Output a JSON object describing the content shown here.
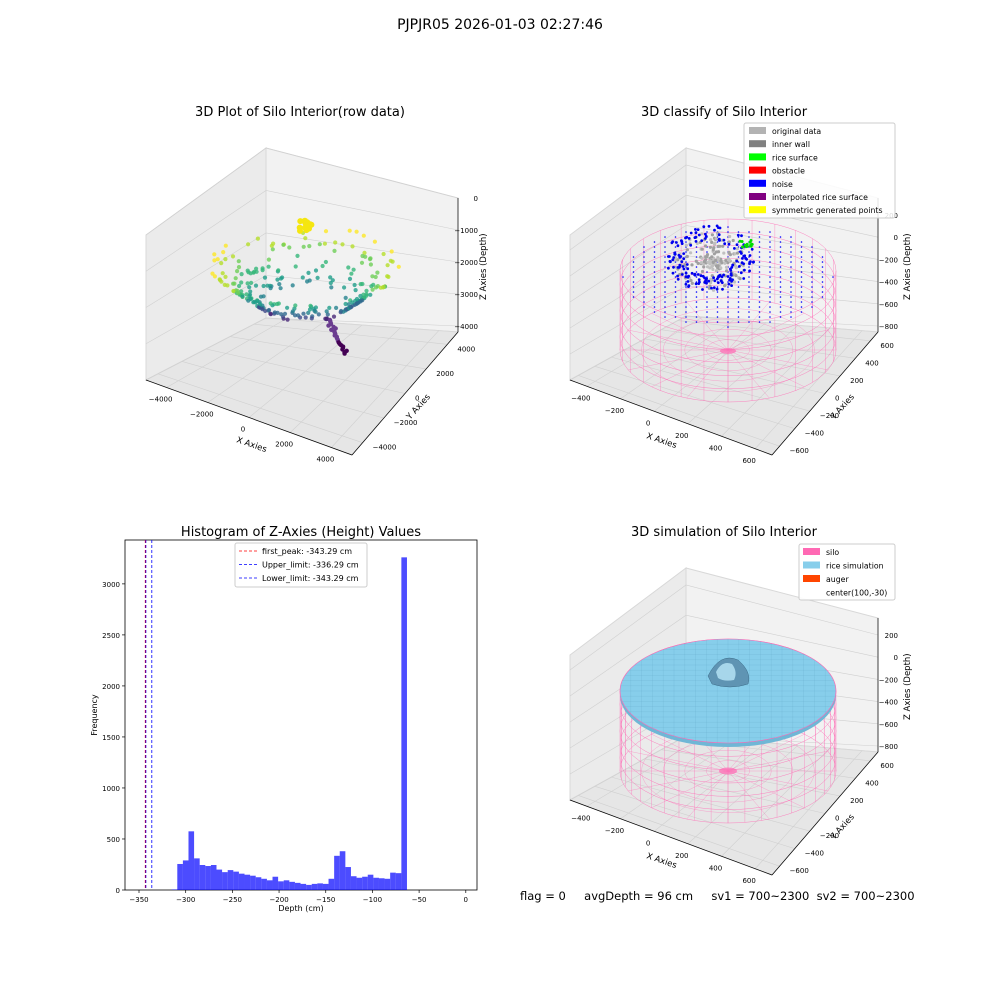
{
  "figure": {
    "suptitle": "PJPJR05 2026-01-03 02:27:46",
    "status": {
      "flag": "flag = 0",
      "avg_depth": "avgDepth = 96 cm",
      "sv1": "sv1 = 700~2300",
      "sv2": "sv2 = 700~2300"
    }
  },
  "chart_data": [
    {
      "type": "scatter",
      "projection": "3d",
      "title": "3D Plot of Silo Interior(row data)",
      "xlabel": "X Axies",
      "ylabel": "Y Axies",
      "zlabel": "Z Axies (Depth)",
      "xticks": [
        -4000,
        -2000,
        0,
        2000,
        4000
      ],
      "yticks": [
        -4000,
        -2000,
        0,
        2000,
        4000
      ],
      "zticks": [
        -4000,
        -3000,
        -2000,
        -1000,
        0
      ],
      "xlim": [
        -5000,
        5000
      ],
      "ylim": [
        -5000,
        5000
      ],
      "zlim": [
        -4600,
        200
      ],
      "colormap": "viridis",
      "grid": true
    },
    {
      "type": "scatter",
      "projection": "3d",
      "title": "3D classify of Silo Interior",
      "xlabel": "X Axies",
      "ylabel": "Y Axies",
      "zlabel": "Z Axies (Depth)",
      "xticks": [
        -400,
        -200,
        0,
        200,
        400,
        600
      ],
      "yticks": [
        -600,
        -400,
        -200,
        0,
        200,
        400,
        600
      ],
      "zticks": [
        -800,
        -600,
        -400,
        -200,
        0,
        200
      ],
      "legend_position": "top-right",
      "legend": [
        {
          "label": "original data",
          "color": "#b3b3b3"
        },
        {
          "label": "inner wall",
          "color": "#808080"
        },
        {
          "label": "rice surface",
          "color": "#00ff00"
        },
        {
          "label": "obstacle",
          "color": "#ff0000"
        },
        {
          "label": "noise",
          "color": "#0000ff"
        },
        {
          "label": "interpolated rice surface",
          "color": "#800080"
        },
        {
          "label": "symmetric generated points",
          "color": "#ffff00"
        }
      ],
      "grid": true
    },
    {
      "type": "bar",
      "title": "Histogram of Z-Axies (Height) Values",
      "xlabel": "Depth (cm)",
      "ylabel": "Frequency",
      "xlim": [
        -365,
        12
      ],
      "ylim": [
        0,
        3430
      ],
      "xticks": [
        -350,
        -300,
        -250,
        -200,
        -150,
        -100,
        -50,
        0
      ],
      "yticks": [
        0,
        500,
        1000,
        1500,
        2000,
        2500,
        3000
      ],
      "bar_color": "#0000ff",
      "bin_width": 6,
      "bin_edges_start": -315,
      "values": [
        5,
        255,
        290,
        575,
        310,
        245,
        235,
        245,
        200,
        175,
        195,
        180,
        160,
        150,
        140,
        125,
        110,
        95,
        130,
        85,
        95,
        80,
        70,
        60,
        50,
        60,
        65,
        60,
        110,
        335,
        380,
        225,
        135,
        120,
        130,
        150,
        120,
        115,
        110,
        170,
        165,
        3260
      ],
      "vlines": [
        {
          "label": "first_peak: -343.29 cm",
          "x": -343.29,
          "color": "#ff0000"
        },
        {
          "label": "Upper_limit: -336.29 cm",
          "x": -336.29,
          "color": "#0000ff"
        },
        {
          "label": "Lower_limit: -343.29 cm",
          "x": -343.29,
          "color": "#0000ff"
        }
      ],
      "legend_position": "top-center",
      "grid": false
    },
    {
      "type": "surface",
      "projection": "3d",
      "title": "3D simulation of Silo Interior",
      "xlabel": "X Axies",
      "ylabel": "Y Axies",
      "zlabel": "Z Axies (Depth)",
      "xticks": [
        -400,
        -200,
        0,
        200,
        400,
        600
      ],
      "yticks": [
        -600,
        -400,
        -200,
        0,
        200,
        400,
        600
      ],
      "zticks": [
        -800,
        -600,
        -400,
        -200,
        0,
        200
      ],
      "legend_position": "top-right",
      "legend": [
        {
          "label": "silo",
          "color": "#ff69b4"
        },
        {
          "label": "rice simulation",
          "color": "#87ceeb"
        },
        {
          "label": "auger",
          "color": "#ff4500"
        },
        {
          "label": "center(100,-30)",
          "color": ""
        }
      ],
      "grid": true
    }
  ]
}
